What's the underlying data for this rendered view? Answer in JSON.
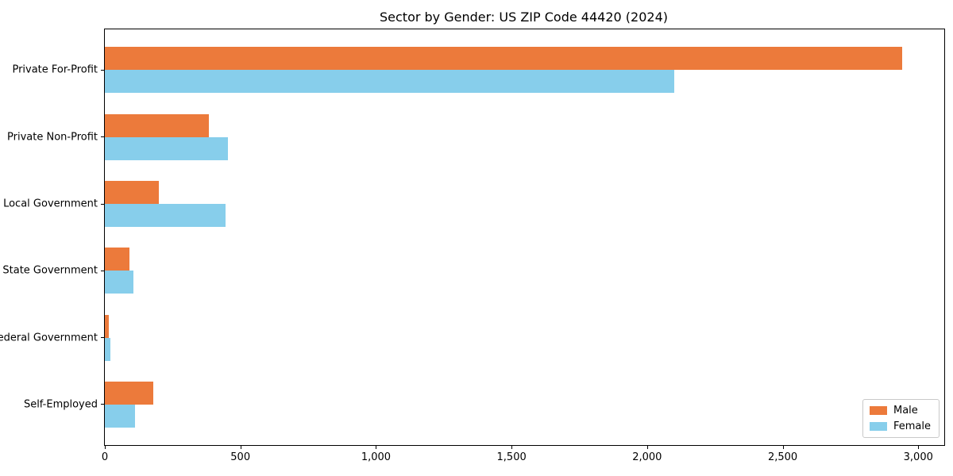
{
  "chart_data": {
    "type": "bar",
    "orientation": "horizontal",
    "title": "Sector by Gender: US ZIP Code 44420 (2024)",
    "categories": [
      "Private For-Profit",
      "Private Non-Profit",
      "Local Government",
      "State Government",
      "Federal Government",
      "Self-Employed"
    ],
    "series": [
      {
        "name": "Male",
        "color": "#ec7a3b",
        "values": [
          2940,
          385,
          200,
          90,
          15,
          180
        ]
      },
      {
        "name": "Female",
        "color": "#87ceeb",
        "values": [
          2100,
          455,
          445,
          105,
          20,
          110
        ]
      }
    ],
    "xlabel": "",
    "ylabel": "",
    "xlim": [
      0,
      3090
    ],
    "x_ticks": [
      0,
      500,
      1000,
      1500,
      2000,
      2500,
      3000
    ],
    "x_tick_labels": [
      "0",
      "500",
      "1,000",
      "1,500",
      "2,000",
      "2,500",
      "3,000"
    ],
    "legend": {
      "position": "lower right",
      "entries": [
        "Male",
        "Female"
      ]
    },
    "grid": false,
    "background_color": "#ffffff",
    "spine_color": "#000000"
  }
}
